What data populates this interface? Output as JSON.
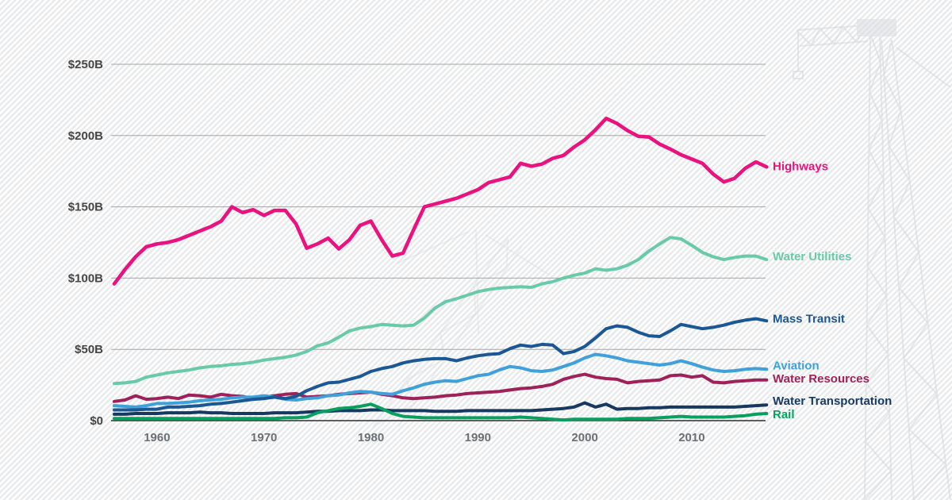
{
  "watermark": {
    "icon": "construction-crane"
  },
  "y_axis": {
    "ticks": [
      {
        "label": "$250B",
        "value": 250
      },
      {
        "label": "$200B",
        "value": 200
      },
      {
        "label": "$150B",
        "value": 150
      },
      {
        "label": "$100B",
        "value": 100
      },
      {
        "label": "$50B",
        "value": 50
      },
      {
        "label": "$0",
        "value": 0
      }
    ]
  },
  "x_axis": {
    "ticks": [
      {
        "label": "1960",
        "year": 1960
      },
      {
        "label": "1970",
        "year": 1970
      },
      {
        "label": "1980",
        "year": 1980
      },
      {
        "label": "1990",
        "year": 1990
      },
      {
        "label": "2000",
        "year": 2000
      },
      {
        "label": "2010",
        "year": 2010
      }
    ]
  },
  "chart_data": {
    "type": "line",
    "title": "",
    "unit": "billions of dollars",
    "grid": "horizontal",
    "legend_position": "right",
    "x_range": [
      1956,
      2017
    ],
    "ylim": [
      0,
      250
    ],
    "x": [
      1956,
      1957,
      1958,
      1959,
      1960,
      1961,
      1962,
      1963,
      1964,
      1965,
      1966,
      1967,
      1968,
      1969,
      1970,
      1971,
      1972,
      1973,
      1974,
      1975,
      1976,
      1977,
      1978,
      1979,
      1980,
      1981,
      1982,
      1983,
      1984,
      1985,
      1986,
      1987,
      1988,
      1989,
      1990,
      1991,
      1992,
      1993,
      1994,
      1995,
      1996,
      1997,
      1998,
      1999,
      2000,
      2001,
      2002,
      2003,
      2004,
      2005,
      2006,
      2007,
      2008,
      2009,
      2010,
      2011,
      2012,
      2013,
      2014,
      2015,
      2016,
      2017
    ],
    "series": [
      {
        "id": "highways",
        "name": "Highways",
        "color": "#e9127e",
        "values": [
          96,
          106,
          115,
          122,
          124,
          125,
          127,
          130,
          133,
          136,
          140,
          150,
          146,
          148,
          144,
          147.5,
          147.5,
          138,
          121,
          124,
          128,
          120.5,
          127,
          137,
          140,
          127,
          115.5,
          117.5,
          134,
          150,
          152,
          154,
          156,
          159,
          162,
          167,
          169,
          171,
          180.5,
          178.5,
          180,
          184,
          186,
          192,
          197,
          204,
          212,
          208.5,
          203.5,
          199.5,
          199,
          194,
          190.5,
          186.5,
          183.5,
          180.5,
          173,
          167.5,
          170,
          177,
          181.5,
          178
        ]
      },
      {
        "id": "water-utilities",
        "name": "Water Utilities",
        "color": "#69caa7",
        "values": [
          26,
          26.5,
          27.5,
          30.5,
          32,
          33.5,
          34.5,
          35.5,
          37,
          38,
          38.5,
          39.5,
          40,
          41,
          42.5,
          43.5,
          44.5,
          46,
          48.5,
          52.5,
          54.5,
          58.5,
          63,
          65,
          66,
          67.5,
          67,
          66.5,
          67,
          72,
          79,
          83.5,
          85.5,
          88,
          90.5,
          92,
          93,
          93.5,
          94,
          93.5,
          96,
          97.5,
          100,
          102,
          103.5,
          106.5,
          105.5,
          106.5,
          109,
          113,
          119,
          124,
          128.5,
          127.5,
          123,
          118,
          115,
          113,
          114.5,
          115.5,
          115.5,
          113
        ]
      },
      {
        "id": "mass-transit",
        "name": "Mass Transit",
        "color": "#1a5794",
        "values": [
          7.5,
          7.5,
          7.5,
          8,
          8,
          9.5,
          9.5,
          10,
          10.5,
          11.5,
          12,
          13,
          14,
          15,
          15.5,
          16.5,
          15.5,
          17,
          21,
          24,
          26.5,
          27,
          29,
          31,
          34.5,
          36.5,
          38,
          40.5,
          42,
          43,
          43.5,
          43.5,
          42,
          44,
          45.5,
          46.5,
          47,
          50.5,
          53,
          52,
          53.5,
          53,
          47,
          48.5,
          52,
          58,
          64.5,
          66.5,
          65.5,
          62,
          59.5,
          59,
          63,
          67.5,
          66,
          64.5,
          65.5,
          67,
          69,
          70.5,
          71.5,
          70
        ]
      },
      {
        "id": "aviation",
        "name": "Aviation",
        "color": "#3fa0da",
        "values": [
          10.5,
          10,
          9.5,
          10.5,
          12,
          12,
          12.5,
          13,
          14,
          14.5,
          15,
          16,
          16.5,
          16.5,
          17.5,
          16.5,
          15,
          14.5,
          15.5,
          16,
          17.5,
          18,
          19.5,
          20.5,
          20,
          19,
          18.5,
          21,
          23,
          25.5,
          27,
          28,
          27.5,
          29.5,
          31.5,
          32.5,
          35.5,
          38,
          37,
          35,
          34.5,
          35.5,
          38,
          40.5,
          44,
          46.5,
          45.5,
          44,
          42,
          41,
          40,
          39,
          40,
          42,
          40,
          37.5,
          35.5,
          34.5,
          35,
          36,
          36.5,
          36
        ]
      },
      {
        "id": "water-resources",
        "name": "Water Resources",
        "color": "#9e2159",
        "values": [
          13.5,
          14.5,
          17.5,
          15,
          15.5,
          16.5,
          15.5,
          18,
          17.5,
          16.5,
          18.5,
          17.5,
          17,
          15.5,
          16.5,
          17.5,
          18.5,
          19,
          16.5,
          17,
          17.5,
          18.5,
          19,
          19.5,
          20,
          18.5,
          17.5,
          16,
          15.5,
          16,
          16.5,
          17.5,
          18,
          19,
          19.5,
          20,
          20.5,
          21.5,
          22.5,
          23,
          24,
          25.5,
          29,
          31,
          32.5,
          30.5,
          29.5,
          29,
          26.5,
          27.5,
          28,
          28.5,
          31.5,
          32,
          30.5,
          31.5,
          27,
          26.5,
          27.5,
          28,
          28.5,
          28.5
        ]
      },
      {
        "id": "water-transportation",
        "name": "Water Transportation",
        "color": "#17395f",
        "values": [
          4.5,
          4.5,
          5,
          5,
          5,
          5.5,
          5.5,
          5.5,
          6,
          5.5,
          5.5,
          5,
          5,
          5,
          5,
          5.5,
          5.5,
          5.5,
          6,
          6.5,
          6.5,
          7,
          7,
          7,
          7.5,
          7.5,
          7,
          7,
          7,
          7,
          6.5,
          6.5,
          6.5,
          7,
          7,
          7,
          7,
          7,
          7,
          7,
          7.5,
          8,
          8.5,
          9.5,
          12.5,
          9.5,
          11.5,
          8,
          8.5,
          8.5,
          9,
          9,
          9.5,
          9.5,
          9.5,
          9.5,
          9.5,
          9.5,
          9.5,
          10,
          10.5,
          11
        ]
      },
      {
        "id": "rail",
        "name": "Rail",
        "color": "#089f5f",
        "values": [
          1.5,
          1.5,
          1.5,
          1.5,
          1.5,
          1.5,
          1.5,
          1.5,
          1.5,
          1.5,
          1.5,
          1.5,
          1.5,
          1.5,
          1.5,
          1.5,
          2,
          2,
          2.5,
          5.5,
          7,
          8.5,
          9,
          10,
          11.5,
          8.5,
          5,
          3,
          2.5,
          2,
          2,
          2,
          2,
          2,
          2,
          2,
          2,
          2,
          2.5,
          2,
          1.5,
          1,
          0.5,
          1,
          1,
          1,
          1,
          1,
          1.5,
          1.5,
          1.5,
          2,
          2.5,
          3,
          2.5,
          2.5,
          2.5,
          2.5,
          3,
          3.5,
          4.5,
          5
        ]
      }
    ]
  }
}
